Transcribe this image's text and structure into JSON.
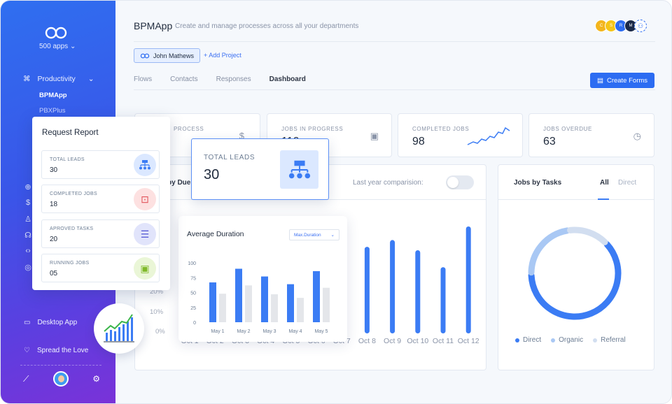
{
  "sidebar": {
    "apps_label": "500 apps",
    "section_label": "Productivity",
    "items": [
      "BPMApp",
      "PBXPlus"
    ],
    "icons": [
      "support-icon",
      "dollar-icon",
      "user-icon",
      "headset-icon",
      "code-icon",
      "globe-icon"
    ],
    "footer": [
      "Desktop App",
      "Spread the Love"
    ]
  },
  "header": {
    "title": "BPMApp",
    "subtitle": "Create and manage processes across all your departments",
    "user_chip": "John Mathews",
    "add_project": "+ Add Project",
    "avatars": [
      "C",
      "S",
      "R",
      "M"
    ],
    "tabs": [
      "Flows",
      "Contacts",
      "Responses",
      "Dashboard"
    ],
    "active_tab": "Dashboard",
    "create_button": "Create Forms"
  },
  "stats": [
    {
      "label": "PROCESS",
      "value": ""
    },
    {
      "label": "JOBS IN PROGRESS",
      "value": "110"
    },
    {
      "label": "COMPLETED JOBS",
      "value": "98"
    },
    {
      "label": "JOBS OVERDUE",
      "value": "63"
    }
  ],
  "main_panel": {
    "title": "by Due",
    "toggle_label": "Last year comparision:",
    "percent_labels": [
      "20%",
      "10%",
      "0%"
    ]
  },
  "request_report": {
    "title": "Request Report",
    "items": [
      {
        "label": "TOTAL LEADS",
        "value": "30"
      },
      {
        "label": "COMPLETED JOBS",
        "value": "18"
      },
      {
        "label": "APROVED TASKS",
        "value": "20"
      },
      {
        "label": "RUNNING JOBS",
        "value": "05"
      }
    ]
  },
  "total_leads_card": {
    "label": "TOTAL LEADS",
    "value": "30"
  },
  "avg_duration": {
    "title": "Average Duration",
    "select_value": "Max.Duration"
  },
  "jobs_by_tasks": {
    "title": "Jobs by Tasks",
    "tabs": [
      "All",
      "Direct"
    ],
    "legend": [
      "Direct",
      "Organic",
      "Referral"
    ]
  },
  "colors": {
    "accent": "#2c6cf2",
    "bar_primary": "#3b7cf4",
    "bar_secondary": "#e4e6ea",
    "donut_direct": "#3b7cf4",
    "donut_organic": "#a9c8f4",
    "donut_referral": "#d2def0"
  },
  "chart_data": [
    {
      "type": "bar",
      "title": "",
      "categories": [
        "Oct 1",
        "Oct 2",
        "Oct 3",
        "Oct 4",
        "Oct 5",
        "Oct 6",
        "Oct 7",
        "Oct 8",
        "Oct 9",
        "Oct 10",
        "Oct 11",
        "Oct 12"
      ],
      "values": [
        null,
        null,
        null,
        null,
        null,
        null,
        null,
        25.5,
        27.5,
        24.5,
        19.5,
        31.5
      ],
      "ylim": [
        0,
        35
      ],
      "grid": false
    },
    {
      "type": "bar",
      "title": "Average Duration",
      "categories": [
        "May 1",
        "May 2",
        "May 3",
        "May 4",
        "May 5"
      ],
      "ylim": [
        0,
        100
      ],
      "yticks": [
        0,
        25,
        50,
        75,
        100
      ],
      "series": [
        {
          "values": [
            67,
            90,
            77,
            64,
            86
          ]
        },
        {
          "values": [
            48,
            62,
            47,
            41,
            58
          ]
        }
      ]
    },
    {
      "type": "pie",
      "title": "Jobs by Tasks",
      "categories": [
        "Direct",
        "Organic",
        "Referral"
      ],
      "values": [
        62,
        23,
        15
      ]
    }
  ]
}
